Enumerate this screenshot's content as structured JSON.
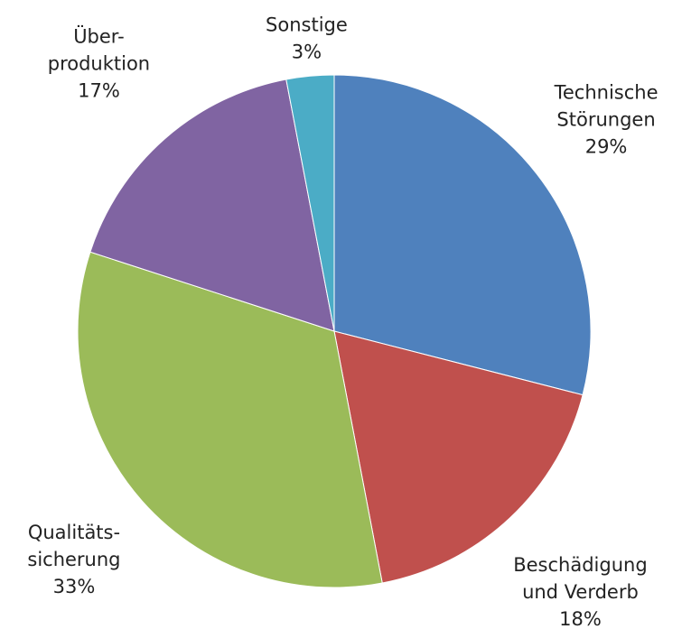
{
  "chart_data": {
    "type": "pie",
    "categories": [
      [
        "Technische",
        "Störungen"
      ],
      [
        "Beschädigung",
        "und Verderb"
      ],
      [
        "Qualitäts-",
        "sicherung"
      ],
      [
        "Über-",
        "produktion"
      ],
      [
        "Sonstige"
      ]
    ],
    "values": [
      29,
      18,
      33,
      17,
      3
    ],
    "value_labels": [
      "29%",
      "18%",
      "33%",
      "17%",
      "3%"
    ],
    "colors": [
      "#4f81bd",
      "#c0504d",
      "#9bbb59",
      "#8064a2",
      "#4bacc6"
    ]
  }
}
